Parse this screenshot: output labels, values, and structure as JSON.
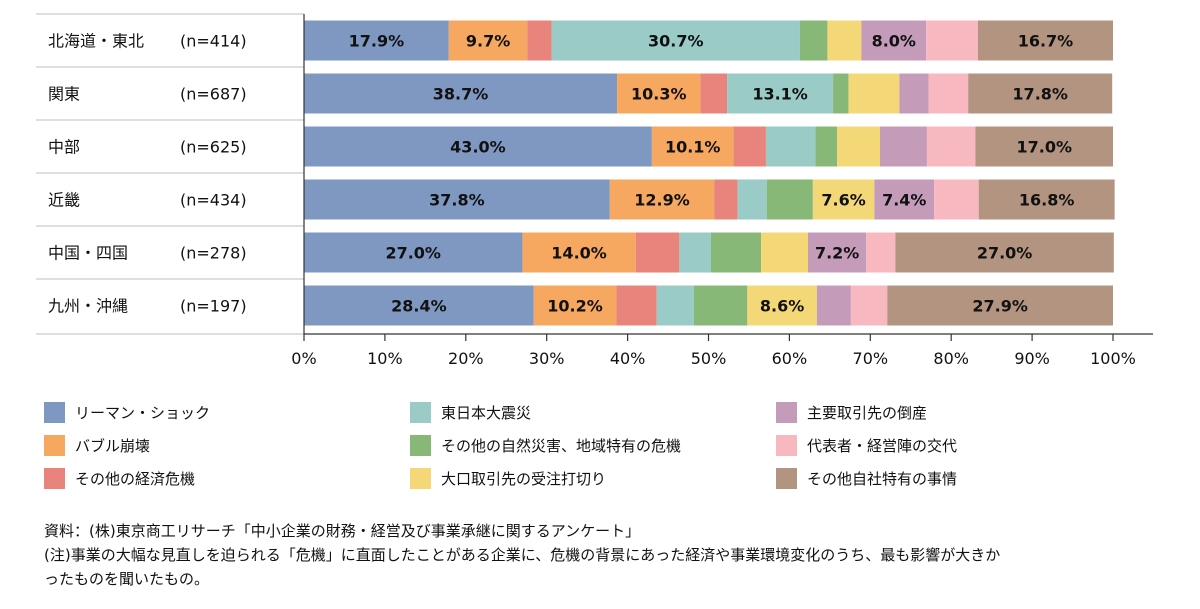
{
  "chart_data": {
    "type": "bar",
    "orientation": "horizontal",
    "stacked": true,
    "percent": true,
    "xlim": [
      0,
      100
    ],
    "x_ticks": [
      "0%",
      "10%",
      "20%",
      "30%",
      "40%",
      "50%",
      "60%",
      "70%",
      "80%",
      "90%",
      "100%"
    ],
    "categories": [
      {
        "name": "北海道・東北",
        "n": "(n=414)"
      },
      {
        "name": "関東",
        "n": "(n=687)"
      },
      {
        "name": "中部",
        "n": "(n=625)"
      },
      {
        "name": "近畿",
        "n": "(n=434)"
      },
      {
        "name": "中国・四国",
        "n": "(n=278)"
      },
      {
        "name": "九州・沖縄",
        "n": "(n=197)"
      }
    ],
    "series": [
      {
        "name": "リーマン・ショック",
        "color": "#7f98c1",
        "values": [
          17.9,
          38.7,
          43.0,
          37.8,
          27.0,
          28.4
        ],
        "labels": [
          "17.9%",
          "38.7%",
          "43.0%",
          "37.8%",
          "27.0%",
          "28.4%"
        ]
      },
      {
        "name": "バブル崩壊",
        "color": "#f6a860",
        "values": [
          9.7,
          10.3,
          10.1,
          12.9,
          14.0,
          10.2
        ],
        "labels": [
          "9.7%",
          "10.3%",
          "10.1%",
          "12.9%",
          "14.0%",
          "10.2%"
        ]
      },
      {
        "name": "その他の経済危機",
        "color": "#e8847b",
        "values": [
          3.0,
          3.3,
          4.0,
          2.9,
          5.4,
          5.0
        ],
        "labels": [
          "",
          "",
          "",
          "",
          "",
          ""
        ]
      },
      {
        "name": "東日本大震災",
        "color": "#9bcbc6",
        "values": [
          30.7,
          13.1,
          6.1,
          3.6,
          3.9,
          4.6
        ],
        "labels": [
          "30.7%",
          "13.1%",
          "",
          "",
          "",
          ""
        ]
      },
      {
        "name": "その他の自然災害、地域特有の危機",
        "color": "#88b878",
        "values": [
          3.4,
          1.9,
          2.7,
          5.7,
          6.2,
          6.6
        ],
        "labels": [
          "",
          "",
          "",
          "",
          "",
          ""
        ]
      },
      {
        "name": "大口取引先の受注打切り",
        "color": "#f4d878",
        "values": [
          4.2,
          6.3,
          5.3,
          7.6,
          5.8,
          8.6
        ],
        "labels": [
          "",
          "",
          "",
          "7.6%",
          "",
          "8.6%"
        ]
      },
      {
        "name": "主要取引先の倒産",
        "color": "#c49cb9",
        "values": [
          8.0,
          3.6,
          5.8,
          7.4,
          7.2,
          4.2
        ],
        "labels": [
          "8.0%",
          "",
          "",
          "7.4%",
          "7.2%",
          ""
        ]
      },
      {
        "name": "代表者・経営陣の交代",
        "color": "#f8b8c0",
        "values": [
          6.4,
          4.9,
          6.0,
          5.5,
          3.6,
          4.5
        ],
        "labels": [
          "",
          "",
          "",
          "",
          "",
          ""
        ]
      },
      {
        "name": "その他自社特有の事情",
        "color": "#b39481",
        "values": [
          16.7,
          17.8,
          17.0,
          16.8,
          27.0,
          27.9
        ],
        "labels": [
          "16.7%",
          "17.8%",
          "17.0%",
          "16.8%",
          "27.0%",
          "27.9%"
        ]
      }
    ]
  },
  "legend_columns": [
    [
      "リーマン・ショック",
      "バブル崩壊",
      "その他の経済危機"
    ],
    [
      "東日本大震災",
      "その他の自然災害、地域特有の危機",
      "大口取引先の受注打切り"
    ],
    [
      "主要取引先の倒産",
      "代表者・経営陣の交代",
      "その他自社特有の事情"
    ]
  ],
  "notes": {
    "source": "資料：(株)東京商工リサーチ「中小企業の財務・経営及び事業承継に関するアンケート」",
    "note_line1": "(注)事業の大幅な見直しを迫られる「危機」に直面したことがある企業に、危機の背景にあった経済や事業環境変化のうち、最も影響が大きか",
    "note_line2": "ったものを聞いたもの。"
  }
}
